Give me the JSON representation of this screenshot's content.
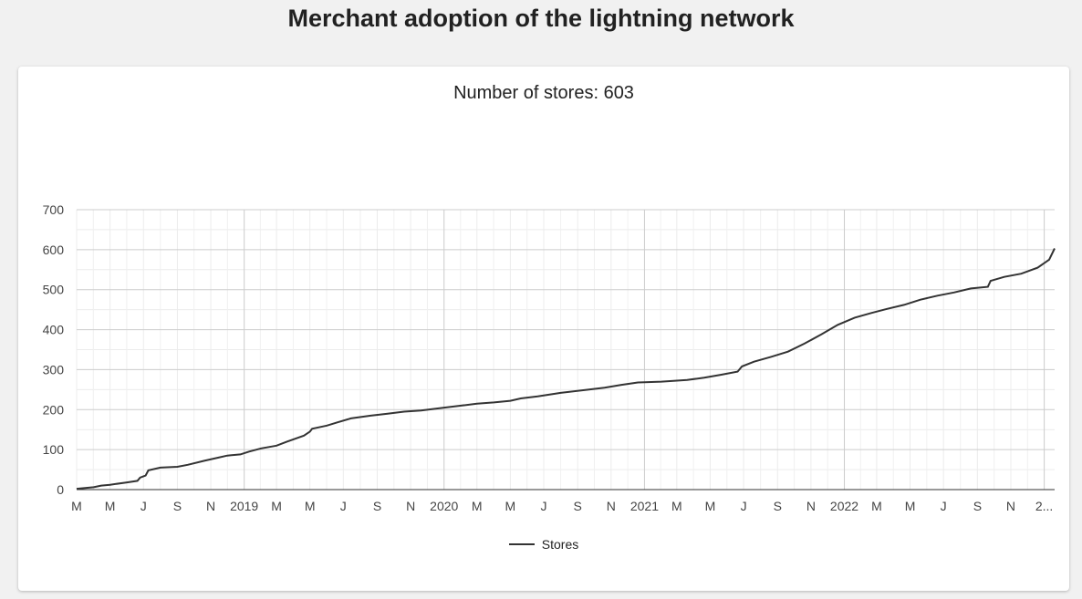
{
  "page": {
    "title": "Merchant adoption of the lightning network"
  },
  "chart_data": {
    "type": "line",
    "title": "Number of stores: 603",
    "xlabel": "",
    "ylabel": "",
    "ylim": [
      0,
      700
    ],
    "yticks": [
      0,
      100,
      200,
      300,
      400,
      500,
      600,
      700
    ],
    "xlim": [
      "2018-03-01",
      "2023-01-20"
    ],
    "xticks": [
      {
        "date": "2018-03-01",
        "label": "M"
      },
      {
        "date": "2018-05-01",
        "label": "M"
      },
      {
        "date": "2018-07-01",
        "label": "J"
      },
      {
        "date": "2018-09-01",
        "label": "S"
      },
      {
        "date": "2018-11-01",
        "label": "N"
      },
      {
        "date": "2019-01-01",
        "label": "2019"
      },
      {
        "date": "2019-03-01",
        "label": "M"
      },
      {
        "date": "2019-05-01",
        "label": "M"
      },
      {
        "date": "2019-07-01",
        "label": "J"
      },
      {
        "date": "2019-09-01",
        "label": "S"
      },
      {
        "date": "2019-11-01",
        "label": "N"
      },
      {
        "date": "2020-01-01",
        "label": "2020"
      },
      {
        "date": "2020-03-01",
        "label": "M"
      },
      {
        "date": "2020-05-01",
        "label": "M"
      },
      {
        "date": "2020-07-01",
        "label": "J"
      },
      {
        "date": "2020-09-01",
        "label": "S"
      },
      {
        "date": "2020-11-01",
        "label": "N"
      },
      {
        "date": "2021-01-01",
        "label": "2021"
      },
      {
        "date": "2021-03-01",
        "label": "M"
      },
      {
        "date": "2021-05-01",
        "label": "M"
      },
      {
        "date": "2021-07-01",
        "label": "J"
      },
      {
        "date": "2021-09-01",
        "label": "S"
      },
      {
        "date": "2021-11-01",
        "label": "N"
      },
      {
        "date": "2022-01-01",
        "label": "2022"
      },
      {
        "date": "2022-03-01",
        "label": "M"
      },
      {
        "date": "2022-05-01",
        "label": "M"
      },
      {
        "date": "2022-07-01",
        "label": "J"
      },
      {
        "date": "2022-09-01",
        "label": "S"
      },
      {
        "date": "2022-11-01",
        "label": "N"
      },
      {
        "date": "2023-01-01",
        "label": "2..."
      }
    ],
    "grid": true,
    "legend_position": "bottom",
    "series": [
      {
        "name": "Stores",
        "color": "#333333",
        "points": [
          [
            "2018-03-01",
            2
          ],
          [
            "2018-04-01",
            6
          ],
          [
            "2018-04-15",
            10
          ],
          [
            "2018-05-01",
            12
          ],
          [
            "2018-06-01",
            18
          ],
          [
            "2018-06-20",
            22
          ],
          [
            "2018-06-25",
            30
          ],
          [
            "2018-07-05",
            35
          ],
          [
            "2018-07-10",
            48
          ],
          [
            "2018-08-01",
            55
          ],
          [
            "2018-09-01",
            57
          ],
          [
            "2018-09-20",
            62
          ],
          [
            "2018-10-20",
            72
          ],
          [
            "2018-11-15",
            80
          ],
          [
            "2018-12-01",
            85
          ],
          [
            "2018-12-25",
            88
          ],
          [
            "2019-01-10",
            95
          ],
          [
            "2019-02-01",
            103
          ],
          [
            "2019-03-01",
            110
          ],
          [
            "2019-03-20",
            120
          ],
          [
            "2019-04-20",
            135
          ],
          [
            "2019-05-01",
            145
          ],
          [
            "2019-05-05",
            152
          ],
          [
            "2019-06-01",
            160
          ],
          [
            "2019-06-20",
            168
          ],
          [
            "2019-07-15",
            178
          ],
          [
            "2019-08-20",
            185
          ],
          [
            "2019-09-20",
            190
          ],
          [
            "2019-10-20",
            195
          ],
          [
            "2019-11-20",
            198
          ],
          [
            "2020-01-01",
            205
          ],
          [
            "2020-02-01",
            210
          ],
          [
            "2020-03-01",
            215
          ],
          [
            "2020-04-01",
            218
          ],
          [
            "2020-05-01",
            222
          ],
          [
            "2020-05-20",
            228
          ],
          [
            "2020-06-20",
            233
          ],
          [
            "2020-08-01",
            242
          ],
          [
            "2020-09-20",
            250
          ],
          [
            "2020-10-20",
            255
          ],
          [
            "2020-11-20",
            262
          ],
          [
            "2020-12-20",
            268
          ],
          [
            "2021-02-01",
            270
          ],
          [
            "2021-03-20",
            274
          ],
          [
            "2021-04-20",
            280
          ],
          [
            "2021-05-20",
            287
          ],
          [
            "2021-06-20",
            295
          ],
          [
            "2021-06-28",
            308
          ],
          [
            "2021-07-20",
            320
          ],
          [
            "2021-08-20",
            332
          ],
          [
            "2021-09-20",
            345
          ],
          [
            "2021-10-20",
            365
          ],
          [
            "2021-11-20",
            388
          ],
          [
            "2021-12-20",
            412
          ],
          [
            "2022-01-20",
            430
          ],
          [
            "2022-02-20",
            442
          ],
          [
            "2022-03-20",
            452
          ],
          [
            "2022-04-20",
            462
          ],
          [
            "2022-05-20",
            475
          ],
          [
            "2022-06-20",
            485
          ],
          [
            "2022-07-20",
            493
          ],
          [
            "2022-08-20",
            503
          ],
          [
            "2022-09-20",
            507
          ],
          [
            "2022-09-25",
            522
          ],
          [
            "2022-10-20",
            532
          ],
          [
            "2022-11-20",
            540
          ],
          [
            "2022-12-20",
            555
          ],
          [
            "2023-01-10",
            575
          ],
          [
            "2023-01-20",
            603
          ]
        ]
      }
    ]
  }
}
